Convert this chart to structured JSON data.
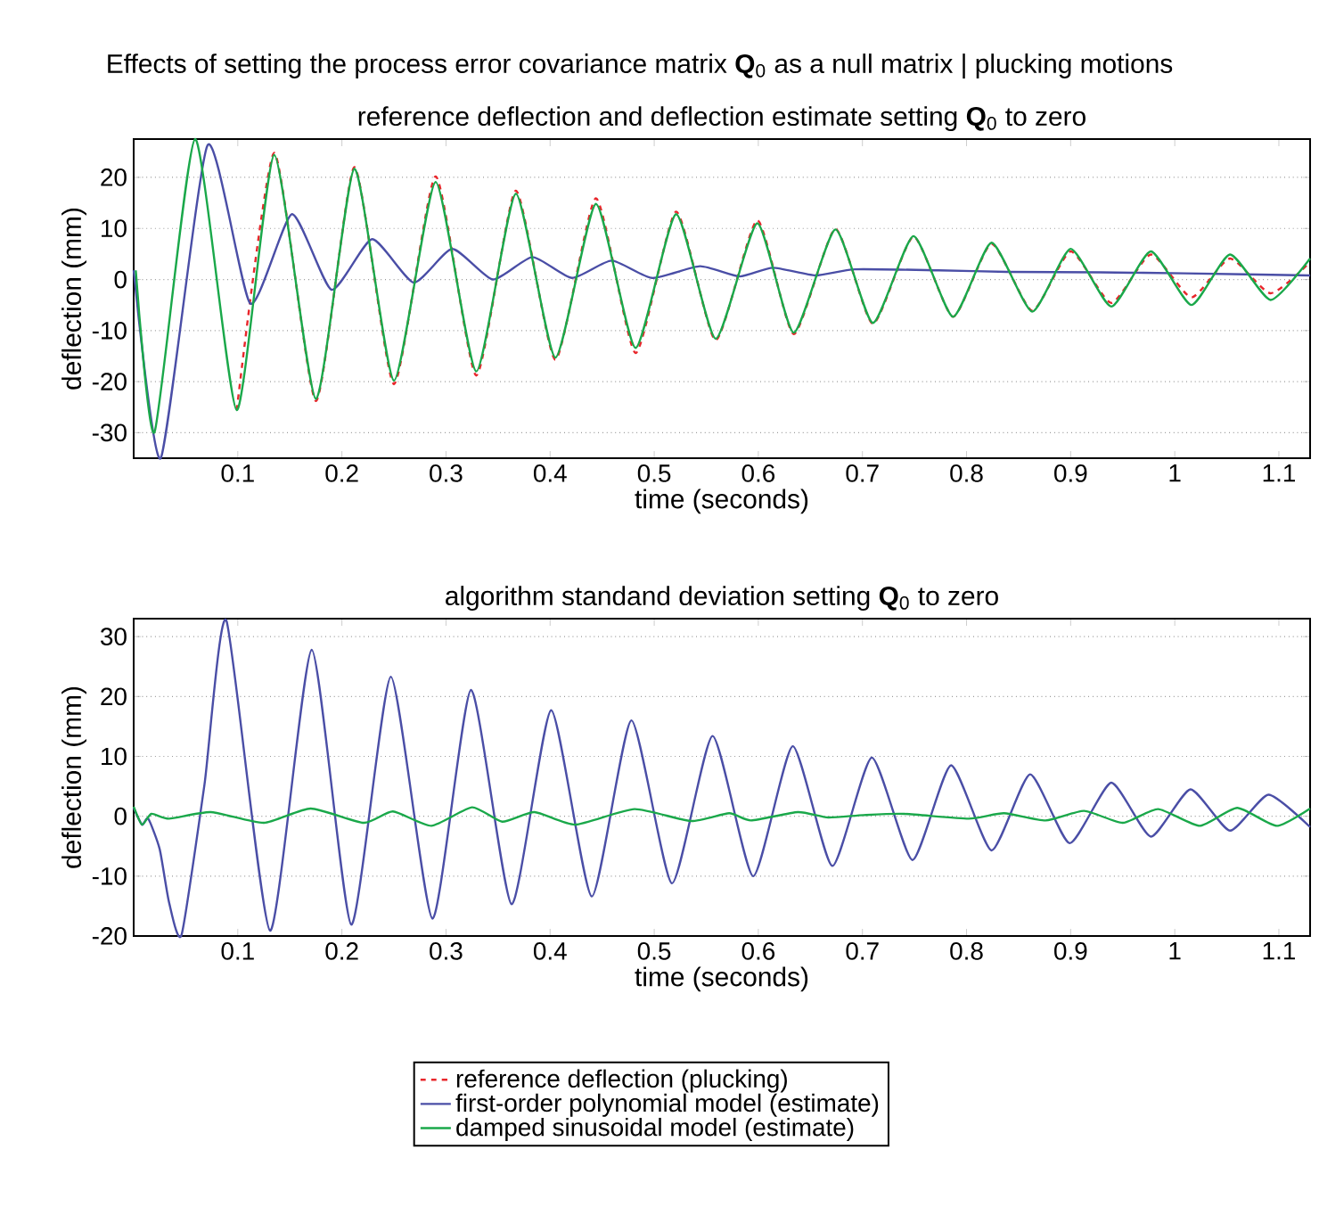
{
  "chart_data": [
    {
      "type": "line",
      "title": "Effects of setting the process error covariance matrix **Q**$_{0}$ as a null matrix | plucking motions",
      "subtitle": "reference deflection and deflection estimate setting **Q**$_{0}$ to zero",
      "xlabel": "time (seconds)",
      "ylabel": "deflection (mm)",
      "xlim": [
        0,
        1.13
      ],
      "ylim": [
        -35,
        27.5
      ],
      "xticks": [
        0.1,
        0.2,
        0.3,
        0.4,
        0.5,
        0.6,
        0.7,
        0.8,
        0.9,
        1,
        1.1
      ],
      "yticks": [
        -30,
        -20,
        -10,
        0,
        10,
        20
      ],
      "grid": "y",
      "legend": "bottom",
      "series": [
        {
          "name": "reference deflection (plucking)",
          "color": "#e8262b",
          "line_style": "dashed",
          "x": [
            0.099,
            0.135,
            0.175,
            0.212,
            0.25,
            0.29,
            0.329,
            0.367,
            0.405,
            0.444,
            0.482,
            0.521,
            0.559,
            0.599,
            0.634,
            0.674,
            0.71,
            0.749,
            0.787,
            0.824,
            0.863,
            0.9,
            0.939,
            0.977,
            1.016,
            1.053,
            1.092,
            1.13
          ],
          "values": [
            -25.6,
            24.8,
            -23.8,
            22,
            -20.5,
            20.2,
            -18.8,
            17.4,
            -15.7,
            15.9,
            -14.4,
            13.3,
            -11.9,
            11.6,
            -10.7,
            9.9,
            -8.7,
            8.4,
            -7.3,
            7.0,
            -6.1,
            5.5,
            -4.6,
            4.9,
            -3.5,
            4.1,
            -2.7,
            3.4
          ]
        },
        {
          "name": "first-order polynomial model (estimate)",
          "color": "#4a4ea6",
          "line_style": "solid",
          "x": [
            0,
            0.026,
            0.071,
            0.112,
            0.152,
            0.19,
            0.229,
            0.269,
            0.306,
            0.345,
            0.383,
            0.421,
            0.459,
            0.498,
            0.544,
            0.582,
            0.614,
            0.655,
            0.693,
            0.773,
            0.839,
            0.928,
            1.009,
            1.13
          ],
          "values": [
            1.8,
            -35,
            26.3,
            -4.7,
            12.8,
            -2.0,
            7.9,
            -0.6,
            6.0,
            0,
            4.4,
            0.3,
            3.7,
            0.3,
            2.6,
            0.6,
            2.3,
            0.8,
            2.0,
            1.8,
            1.5,
            1.4,
            1.2,
            0.8
          ]
        },
        {
          "name": "damped sinusoidal model (estimate)",
          "color": "#1aa84a",
          "line_style": "solid",
          "x": [
            0.002,
            0.02,
            0.059,
            0.099,
            0.135,
            0.175,
            0.212,
            0.25,
            0.29,
            0.329,
            0.367,
            0.405,
            0.444,
            0.482,
            0.521,
            0.559,
            0.599,
            0.634,
            0.674,
            0.71,
            0.749,
            0.787,
            0.824,
            0.863,
            0.9,
            0.939,
            0.977,
            1.016,
            1.053,
            1.092,
            1.13
          ],
          "values": [
            1.8,
            -29.9,
            27.5,
            -25.6,
            24.4,
            -23.4,
            21.7,
            -19.8,
            19.1,
            -18,
            16.8,
            -15.3,
            14.8,
            -13.4,
            12.8,
            -11.6,
            11.0,
            -10.4,
            9.8,
            -8.5,
            8.5,
            -7.3,
            7.2,
            -6.3,
            6.0,
            -5.3,
            5.5,
            -5.0,
            4.9,
            -4.0,
            4.1
          ]
        }
      ]
    },
    {
      "type": "line",
      "title": "algorithm standand deviation setting **Q**$_{0}$ to zero",
      "xlabel": "time (seconds)",
      "ylabel": "deflection (mm)",
      "xlim": [
        0,
        1.13
      ],
      "ylim": [
        -20,
        33
      ],
      "xticks": [
        0.1,
        0.2,
        0.3,
        0.4,
        0.5,
        0.6,
        0.7,
        0.8,
        0.9,
        1,
        1.1
      ],
      "yticks": [
        -20,
        -10,
        0,
        10,
        20,
        30
      ],
      "grid": "y",
      "series": [
        {
          "color": "#4a4ea6",
          "line_style": "solid",
          "x": [
            0,
            0.008,
            0.014,
            0.025,
            0.034,
            0.046,
            0.068,
            0.089,
            0.131,
            0.171,
            0.209,
            0.247,
            0.287,
            0.324,
            0.363,
            0.401,
            0.44,
            0.478,
            0.517,
            0.556,
            0.595,
            0.633,
            0.671,
            0.709,
            0.748,
            0.785,
            0.824,
            0.861,
            0.899,
            0.939,
            0.977,
            1.015,
            1.053,
            1.09,
            1.13
          ],
          "values": [
            1.4,
            -1.4,
            -0.4,
            -5.5,
            -14.4,
            -19.8,
            5.3,
            32.7,
            -19.1,
            27.8,
            -18.1,
            23.3,
            -17.1,
            21.1,
            -14.7,
            17.7,
            -13.4,
            16.0,
            -11.2,
            13.4,
            -10.0,
            11.7,
            -8.3,
            9.8,
            -7.3,
            8.5,
            -5.7,
            7.0,
            -4.5,
            5.6,
            -3.4,
            4.5,
            -2.4,
            3.6,
            -1.8
          ]
        },
        {
          "color": "#1aa84a",
          "line_style": "solid",
          "x": [
            0,
            0.008,
            0.017,
            0.034,
            0.074,
            0.125,
            0.17,
            0.221,
            0.249,
            0.286,
            0.325,
            0.354,
            0.385,
            0.424,
            0.481,
            0.535,
            0.572,
            0.593,
            0.638,
            0.667,
            0.701,
            0.74,
            0.802,
            0.836,
            0.876,
            0.913,
            0.95,
            0.984,
            1.024,
            1.06,
            1.098,
            1.13
          ],
          "values": [
            1.6,
            -1.4,
            0.4,
            -0.4,
            0.7,
            -1.1,
            1.3,
            -1.1,
            0.8,
            -1.6,
            1.5,
            -0.9,
            0.7,
            -1.4,
            1.2,
            -0.8,
            0.5,
            -0.7,
            0.7,
            -0.2,
            0.2,
            0.4,
            -0.4,
            0.5,
            -0.7,
            0.9,
            -1.1,
            1.2,
            -1.6,
            1.4,
            -1.6,
            1.3
          ]
        }
      ]
    }
  ]
}
